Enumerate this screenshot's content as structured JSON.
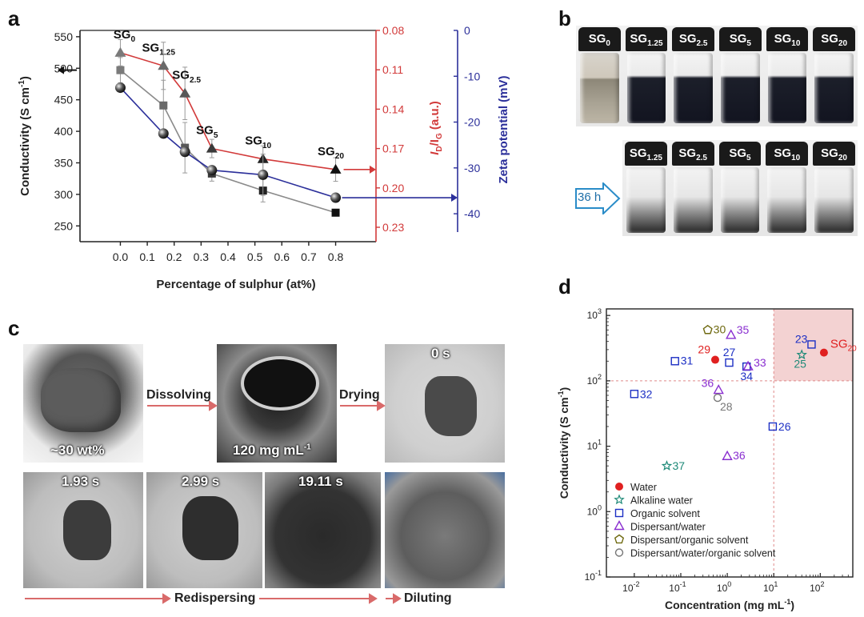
{
  "panels": {
    "a": "a",
    "b": "b",
    "c": "c",
    "d": "d"
  },
  "chart_a": {
    "type": "line",
    "xlabel": "Percentage of sulphur (at%)",
    "ylabel_left": "Conductivity (S cm",
    "ylabel_left_sup": "-1",
    "ylabel_left_end": ")",
    "ylabel_mid_I": "I",
    "ylabel_mid_D": "D",
    "ylabel_mid_slash": "/I",
    "ylabel_mid_G": "G",
    "ylabel_mid_end": " (a.u.)",
    "ylabel_right": "Zeta potential (mV)",
    "x_ticks": [
      "0.0",
      "0.1",
      "0.2",
      "0.3",
      "0.4",
      "0.5",
      "0.6",
      "0.7",
      "0.8"
    ],
    "left_ticks": [
      "550",
      "500",
      "450",
      "400",
      "350",
      "300",
      "250"
    ],
    "mid_ticks": [
      "0.08",
      "0.11",
      "0.14",
      "0.17",
      "0.20",
      "0.23"
    ],
    "right_ticks": [
      "0",
      "-10",
      "-20",
      "-30",
      "-40"
    ],
    "xlim": [
      -0.15,
      0.95
    ],
    "left_ylim": [
      225,
      560
    ],
    "mid_ylim": [
      0.08,
      0.23
    ],
    "right_ylim": [
      0,
      -44
    ],
    "samples": [
      {
        "name": "SG",
        "sub": "0"
      },
      {
        "name": "SG",
        "sub": "1.25"
      },
      {
        "name": "SG",
        "sub": "2.5"
      },
      {
        "name": "SG",
        "sub": "5"
      },
      {
        "name": "SG",
        "sub": "10"
      },
      {
        "name": "SG",
        "sub": "20"
      }
    ],
    "x": [
      0.0,
      0.16,
      0.24,
      0.34,
      0.53,
      0.8
    ],
    "series": [
      {
        "name": "Conductivity",
        "axis": "left",
        "color": "#8a8a8a",
        "marker": "square",
        "values": [
          497,
          441,
          374,
          333,
          306,
          271
        ],
        "err": [
          20,
          40,
          40,
          12,
          18,
          0
        ]
      },
      {
        "name": "ID/IG",
        "axis": "mid",
        "color": "#d23a3a",
        "marker": "triangle",
        "values": [
          0.097,
          0.107,
          0.128,
          0.17,
          0.178,
          0.186
        ],
        "err": [
          0.01,
          0.018,
          0.02,
          0.007,
          0.01,
          0.009
        ]
      },
      {
        "name": "Zeta potential",
        "axis": "right",
        "color": "#2b2f9a",
        "marker": "sphere",
        "values": [
          -12.5,
          -22.5,
          -26.5,
          -30.5,
          -31.5,
          -36.5
        ],
        "err": [
          0,
          0,
          0,
          0,
          4.5,
          0
        ]
      }
    ]
  },
  "panel_b": {
    "top_labels": [
      {
        "name": "SG",
        "sub": "0"
      },
      {
        "name": "SG",
        "sub": "1.25"
      },
      {
        "name": "SG",
        "sub": "2.5"
      },
      {
        "name": "SG",
        "sub": "5"
      },
      {
        "name": "SG",
        "sub": "10"
      },
      {
        "name": "SG",
        "sub": "20"
      }
    ],
    "bottom_labels": [
      {
        "name": "SG",
        "sub": "1.25"
      },
      {
        "name": "SG",
        "sub": "2.5"
      },
      {
        "name": "SG",
        "sub": "5"
      },
      {
        "name": "SG",
        "sub": "10"
      },
      {
        "name": "SG",
        "sub": "20"
      }
    ],
    "time_label": "36 h"
  },
  "panel_c": {
    "photo1": "~30 wt%",
    "photo2_text": "120 mg mL",
    "photo2_sup": "-1",
    "photo3": "0 s",
    "photo4": "1.93 s",
    "photo5": "2.99 s",
    "photo6": "19.11 s",
    "step_dissolving": "Dissolving",
    "step_drying": "Drying",
    "step_redispersing": "Redispersing",
    "step_diluting": "Diluting"
  },
  "chart_d": {
    "type": "scatter",
    "xlabel": "Concentration (mg mL",
    "xlabel_sup": "-1",
    "xlabel_end": ")",
    "ylabel": "Conductivity (S cm",
    "ylabel_sup": "-1",
    "ylabel_end": ")",
    "x_log_range": [
      -2.6,
      2.7
    ],
    "y_log_range": [
      -1,
      3.1
    ],
    "x_ticks": [
      {
        "b": "10",
        "e": "-2"
      },
      {
        "b": "10",
        "e": "-1"
      },
      {
        "b": "10",
        "e": "0"
      },
      {
        "b": "10",
        "e": "1"
      },
      {
        "b": "10",
        "e": "2"
      }
    ],
    "y_ticks": [
      {
        "b": "10",
        "e": "-1"
      },
      {
        "b": "10",
        "e": "0"
      },
      {
        "b": "10",
        "e": "1"
      },
      {
        "b": "10",
        "e": "2"
      },
      {
        "b": "10",
        "e": "3"
      }
    ],
    "highlight": {
      "x_from": 10,
      "y_from": 100,
      "color": "#f3d2d2"
    },
    "points": [
      {
        "label": "29",
        "x": 0.55,
        "y": 210,
        "cat": "water"
      },
      {
        "label": "SG",
        "sub": "20",
        "x": 120,
        "y": 270,
        "cat": "water"
      },
      {
        "label": "37",
        "x": 0.05,
        "y": 5,
        "cat": "alkaline"
      },
      {
        "label": "25",
        "x": 40,
        "y": 250,
        "cat": "alkaline"
      },
      {
        "label": "31",
        "x": 0.075,
        "y": 200,
        "cat": "organic"
      },
      {
        "label": "27",
        "x": 1.1,
        "y": 190,
        "cat": "organic"
      },
      {
        "label": "34",
        "x": 2.6,
        "y": 165,
        "cat": "organic"
      },
      {
        "label": "23",
        "x": 65,
        "y": 360,
        "cat": "organic"
      },
      {
        "label": "32",
        "x": 0.01,
        "y": 63,
        "cat": "organic"
      },
      {
        "label": "26",
        "x": 9.5,
        "y": 20,
        "cat": "organic"
      },
      {
        "label": "35",
        "x": 1.2,
        "y": 500,
        "cat": "dispersant_water"
      },
      {
        "label": "33",
        "x": 2.8,
        "y": 165,
        "cat": "dispersant_water"
      },
      {
        "label": "36",
        "x": 0.65,
        "y": 72,
        "cat": "dispersant_water"
      },
      {
        "label": "36",
        "x": 1.0,
        "y": 7,
        "cat": "dispersant_water"
      },
      {
        "label": "30",
        "x": 0.38,
        "y": 600,
        "cat": "dispersant_organic"
      },
      {
        "label": "28",
        "x": 0.62,
        "y": 55,
        "cat": "dispersant_water_organic"
      }
    ],
    "legend": [
      {
        "cat": "water",
        "label": "Water",
        "color": "#e02020"
      },
      {
        "cat": "alkaline",
        "label": "Alkaline water",
        "color": "#1f8a78"
      },
      {
        "cat": "organic",
        "label": "Organic solvent",
        "color": "#1c2fc4"
      },
      {
        "cat": "dispersant_water",
        "label": "Dispersant/water",
        "color": "#8a2fd0"
      },
      {
        "cat": "dispersant_organic",
        "label": "Dispersant/organic solvent",
        "color": "#6f6a10"
      },
      {
        "cat": "dispersant_water_organic",
        "label": "Dispersant/water/organic solvent",
        "color": "#777777"
      }
    ]
  }
}
